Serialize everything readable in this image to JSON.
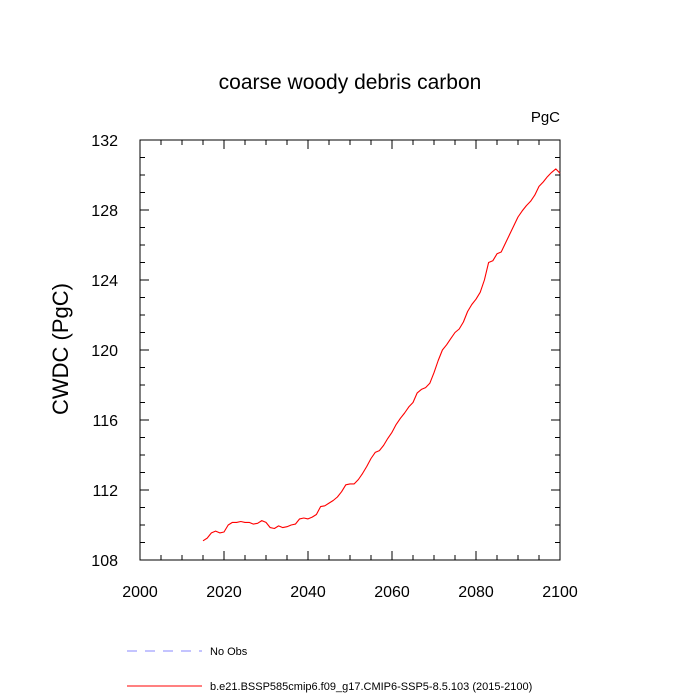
{
  "chart_data": {
    "type": "line",
    "title": "coarse woody debris carbon",
    "units_label": "PgC",
    "xlabel": "",
    "ylabel": "CWDC  (PgC)",
    "xlim": [
      2000,
      2100
    ],
    "ylim": [
      108,
      132
    ],
    "x_ticks": [
      2000,
      2020,
      2040,
      2060,
      2080,
      2100
    ],
    "y_ticks": [
      108,
      112,
      116,
      120,
      124,
      128,
      132
    ],
    "grid": false,
    "legend_position": "bottom",
    "series": [
      {
        "name": "b.e21.BSSP585cmip6.f09_g17.CMIP6-SSP5-8.5.103 (2015-2100)",
        "color": "#ff0000",
        "style": "solid",
        "x": [
          2015,
          2016,
          2017,
          2018,
          2019,
          2020,
          2021,
          2022,
          2023,
          2024,
          2025,
          2026,
          2027,
          2028,
          2029,
          2030,
          2031,
          2032,
          2033,
          2034,
          2035,
          2036,
          2037,
          2038,
          2039,
          2040,
          2041,
          2042,
          2043,
          2044,
          2045,
          2046,
          2047,
          2048,
          2049,
          2050,
          2051,
          2052,
          2053,
          2054,
          2055,
          2056,
          2057,
          2058,
          2059,
          2060,
          2061,
          2062,
          2063,
          2064,
          2065,
          2066,
          2067,
          2068,
          2069,
          2070,
          2071,
          2072,
          2073,
          2074,
          2075,
          2076,
          2077,
          2078,
          2079,
          2080,
          2081,
          2082,
          2083,
          2084,
          2085,
          2086,
          2087,
          2088,
          2089,
          2090,
          2091,
          2092,
          2093,
          2094,
          2095,
          2096,
          2097,
          2098,
          2099,
          2100
        ],
        "values": [
          109.1,
          109.25,
          109.55,
          109.65,
          109.55,
          109.6,
          110.0,
          110.15,
          110.15,
          110.2,
          110.15,
          110.15,
          110.05,
          110.1,
          110.25,
          110.15,
          109.85,
          109.8,
          109.95,
          109.85,
          109.9,
          110.0,
          110.05,
          110.35,
          110.4,
          110.35,
          110.45,
          110.6,
          111.05,
          111.1,
          111.25,
          111.4,
          111.6,
          111.9,
          112.3,
          112.35,
          112.35,
          112.6,
          112.95,
          113.35,
          113.8,
          114.15,
          114.25,
          114.55,
          114.95,
          115.3,
          115.75,
          116.1,
          116.4,
          116.75,
          117.0,
          117.55,
          117.75,
          117.85,
          118.1,
          118.7,
          119.4,
          120.0,
          120.3,
          120.65,
          121.0,
          121.2,
          121.6,
          122.2,
          122.6,
          122.9,
          123.3,
          124.0,
          125.0,
          125.1,
          125.5,
          125.6,
          126.1,
          126.6,
          127.1,
          127.6,
          127.95,
          128.25,
          128.5,
          128.85,
          129.35,
          129.6,
          129.9,
          130.15,
          130.35,
          130.1
        ],
        "x_cut": true
      }
    ],
    "legend": [
      {
        "label": "No Obs",
        "color": "#8888ff",
        "style": "dashed"
      },
      {
        "label": "b.e21.BSSP585cmip6.f09_g17.CMIP6-SSP5-8.5.103 (2015-2100)",
        "color": "#ff0000",
        "style": "solid"
      }
    ]
  }
}
